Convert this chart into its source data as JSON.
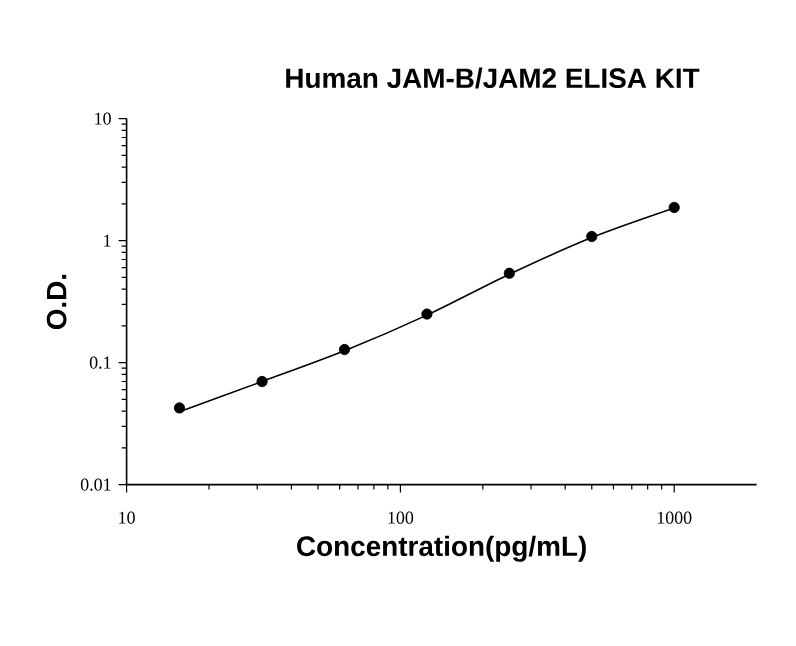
{
  "chart_data": {
    "type": "scatter",
    "title": "Human JAM-B/JAM2 ELISA KIT",
    "xlabel": "Concentration(pg/mL)",
    "ylabel": "O.D.",
    "log": "xy",
    "xlim": [
      10,
      2000
    ],
    "ylim": [
      0.01,
      10
    ],
    "xticks": [
      10,
      100,
      1000
    ],
    "yticks": [
      0.01,
      0.1,
      1,
      10
    ],
    "series": [
      {
        "color": "#000000",
        "marker": "circle",
        "x": [
          15.6,
          31.25,
          62.5,
          125,
          250,
          500,
          1000
        ],
        "values": [
          0.0425,
          0.07,
          0.128,
          0.25,
          0.54,
          1.08,
          1.87
        ]
      },
      {
        "type": "line",
        "color": "#000000",
        "marker": "none",
        "line_style": "solid",
        "x": [
          15.6,
          31.25,
          62.5,
          125,
          250,
          500,
          1000
        ],
        "values": [
          0.0395,
          0.07,
          0.125,
          0.245,
          0.53,
          1.06,
          1.85
        ]
      }
    ]
  }
}
